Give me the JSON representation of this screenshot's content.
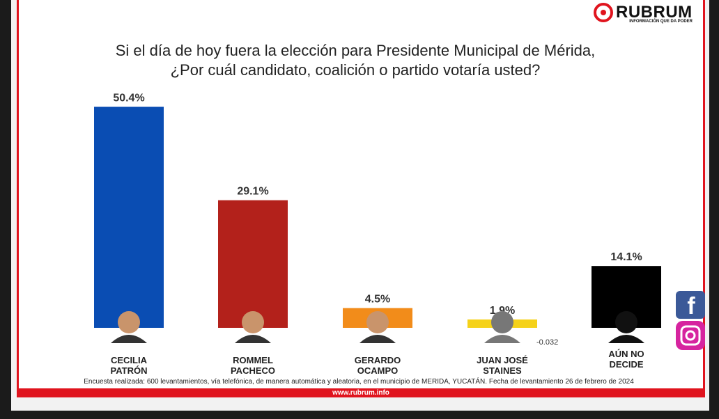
{
  "chart_data": {
    "type": "bar",
    "title": [
      "Si el día de hoy fuera la elección para Presidente Municipal de Mérida,",
      "¿Por cuál candidato, coalición o partido votaría usted?"
    ],
    "categories": [
      "CECILIA PATRÓN",
      "ROMMEL PACHECO",
      "GERARDO OCAMPO",
      "JUAN JOSÉ STAINES",
      "AÚN NO DECIDE"
    ],
    "values": [
      50.4,
      29.1,
      4.5,
      1.9,
      14.1
    ],
    "value_labels": [
      "50.4%",
      "29.1%",
      "4.5%",
      "1.9%",
      "14.1%"
    ],
    "colors": [
      "#0a4db3",
      "#b3211b",
      "#f28c1a",
      "#f5d21a",
      "#000000"
    ],
    "annotation": "-0.032",
    "note": "Encuesta realizada: 600 levantamientos, vía telefónica, de manera automática y aleatoria, en el municipio de MERIDA, YUCATÁN. Fecha de levantamiento 26 de febrero de 2024",
    "url": "www.rubrum.info",
    "brand": "RUBRUM",
    "tagline": "INFORMACIÓN QUE DA PODER"
  }
}
